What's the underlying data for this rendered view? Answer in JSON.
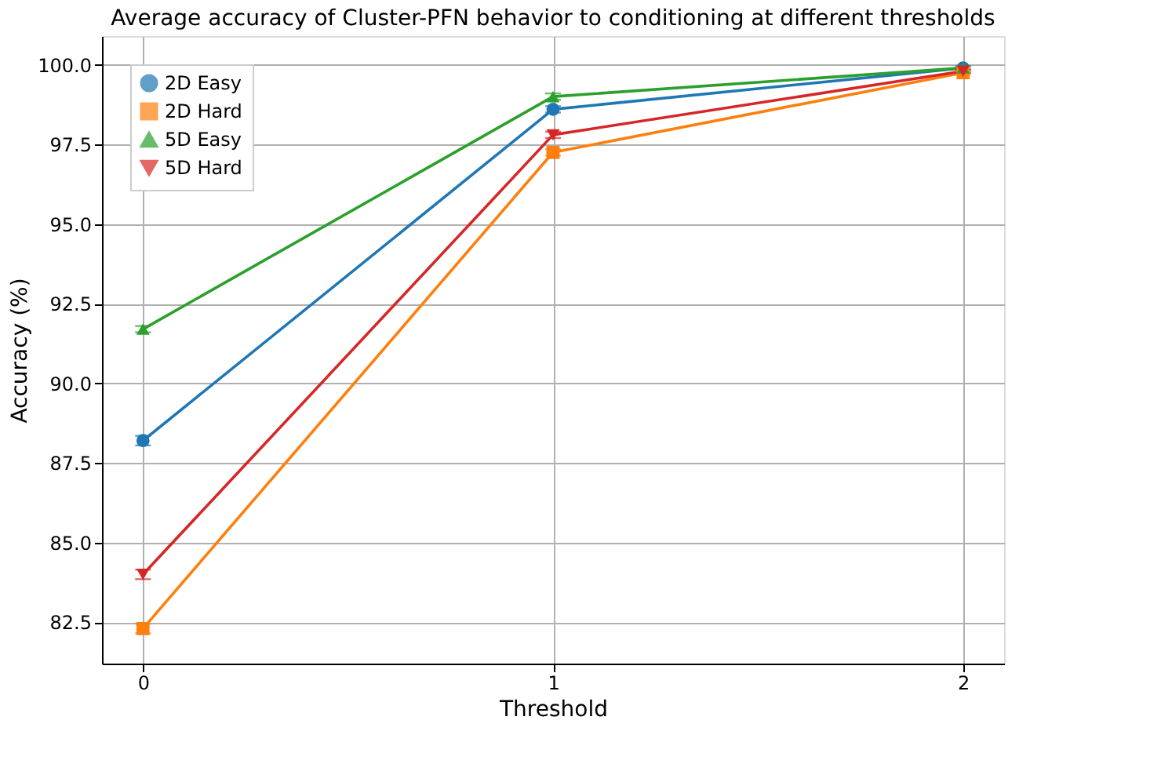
{
  "chart_data": {
    "type": "line",
    "title": "Average accuracy of Cluster-PFN behavior to conditioning at different thresholds",
    "xlabel": "Threshold",
    "ylabel": "Accuracy (%)",
    "x": [
      0,
      1,
      2
    ],
    "series": [
      {
        "name": "2D Easy",
        "color": "#1f77b4",
        "marker": "circle",
        "values": [
          88.2,
          98.6,
          99.9
        ],
        "errors": [
          0.15,
          0.1,
          0.05
        ]
      },
      {
        "name": "2D Hard",
        "color": "#ff7f0e",
        "marker": "square",
        "values": [
          82.3,
          97.25,
          99.75
        ],
        "errors": [
          0.15,
          0.1,
          0.05
        ]
      },
      {
        "name": "5D Easy",
        "color": "#2ca02c",
        "marker": "triangle",
        "values": [
          91.7,
          99.0,
          99.9
        ],
        "errors": [
          0.1,
          0.1,
          0.05
        ]
      },
      {
        "name": "5D Hard",
        "color": "#d62728",
        "marker": "triangle-down",
        "values": [
          84.0,
          97.8,
          99.8
        ],
        "errors": [
          0.15,
          0.1,
          0.05
        ]
      }
    ],
    "xlim": [
      -0.1,
      2.1
    ],
    "xticks": [
      0,
      1,
      2
    ],
    "ylim": [
      81.2,
      100.9
    ],
    "yticks": [
      82.5,
      {
        "value": 85,
        "label": "85.0"
      },
      87.5,
      {
        "value": 90,
        "label": "90.0"
      },
      92.5,
      {
        "value": 95,
        "label": "95.0"
      },
      97.5,
      {
        "value": 100,
        "label": "100.0"
      }
    ],
    "grid": true,
    "legend": "top left",
    "line_style": "solid"
  }
}
